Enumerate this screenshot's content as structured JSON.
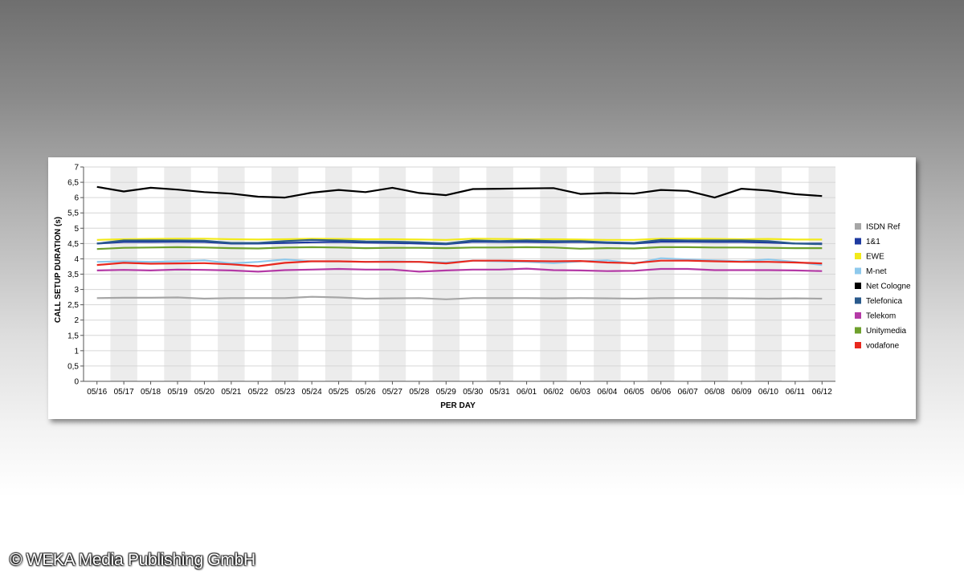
{
  "chart_data": {
    "type": "line",
    "xlabel": "PER DAY",
    "ylabel": "CALL SETUP DURATION (s)",
    "ylim": [
      0,
      7
    ],
    "yticks": [
      "0",
      "0,5",
      "1",
      "1,5",
      "2",
      "2,5",
      "3",
      "3,5",
      "4",
      "4,5",
      "5",
      "5,5",
      "6",
      "6,5",
      "7"
    ],
    "categories": [
      "05/16",
      "05/17",
      "05/18",
      "05/19",
      "05/20",
      "05/21",
      "05/22",
      "05/23",
      "05/24",
      "05/25",
      "05/26",
      "05/27",
      "05/28",
      "05/29",
      "05/30",
      "05/31",
      "06/01",
      "06/02",
      "06/03",
      "06/04",
      "06/05",
      "06/06",
      "06/07",
      "06/08",
      "06/09",
      "06/10",
      "06/11",
      "06/12"
    ],
    "grid": "alternating vertical bands with horizontal gridlines",
    "legend_position": "right",
    "series": [
      {
        "name": "ISDN Ref",
        "color": "#a6a6a6",
        "values": [
          2.72,
          2.73,
          2.73,
          2.74,
          2.7,
          2.72,
          2.72,
          2.72,
          2.76,
          2.74,
          2.7,
          2.71,
          2.72,
          2.68,
          2.72,
          2.72,
          2.72,
          2.71,
          2.72,
          2.71,
          2.7,
          2.72,
          2.72,
          2.72,
          2.71,
          2.7,
          2.71,
          2.7
        ]
      },
      {
        "name": "1&1",
        "color": "#1e3aa0",
        "values": [
          4.5,
          4.55,
          4.55,
          4.56,
          4.55,
          4.5,
          4.5,
          4.52,
          4.54,
          4.55,
          4.53,
          4.52,
          4.5,
          4.48,
          4.56,
          4.55,
          4.55,
          4.54,
          4.55,
          4.52,
          4.5,
          4.56,
          4.56,
          4.55,
          4.55,
          4.53,
          4.5,
          4.5
        ]
      },
      {
        "name": "EWE",
        "color": "#f2ea1b",
        "values": [
          4.62,
          4.64,
          4.65,
          4.66,
          4.66,
          4.64,
          4.63,
          4.64,
          4.66,
          4.65,
          4.64,
          4.64,
          4.63,
          4.62,
          4.66,
          4.65,
          4.64,
          4.64,
          4.63,
          4.62,
          4.62,
          4.66,
          4.66,
          4.65,
          4.64,
          4.65,
          4.63,
          4.63
        ]
      },
      {
        "name": "M-net",
        "color": "#8ec9ec",
        "values": [
          3.9,
          3.92,
          3.9,
          3.92,
          3.95,
          3.85,
          3.9,
          3.98,
          3.92,
          3.92,
          3.9,
          3.92,
          3.9,
          3.88,
          3.94,
          3.92,
          3.9,
          3.86,
          3.92,
          3.95,
          3.84,
          4.02,
          3.98,
          3.95,
          3.92,
          3.98,
          3.9,
          3.8
        ]
      },
      {
        "name": "Net Cologne",
        "color": "#000000",
        "values": [
          6.35,
          6.2,
          6.32,
          6.26,
          6.18,
          6.13,
          6.03,
          6.0,
          6.16,
          6.25,
          6.18,
          6.32,
          6.15,
          6.08,
          6.28,
          6.29,
          6.3,
          6.31,
          6.12,
          6.15,
          6.13,
          6.25,
          6.22,
          6.0,
          6.29,
          6.23,
          6.11,
          6.05
        ]
      },
      {
        "name": "Telefonica",
        "color": "#2a5a8c",
        "values": [
          4.5,
          4.6,
          4.6,
          4.6,
          4.59,
          4.52,
          4.52,
          4.58,
          4.62,
          4.6,
          4.57,
          4.56,
          4.54,
          4.5,
          4.6,
          4.58,
          4.6,
          4.58,
          4.58,
          4.54,
          4.52,
          4.62,
          4.6,
          4.6,
          4.6,
          4.58,
          4.5,
          4.48
        ]
      },
      {
        "name": "Telekom",
        "color": "#b43aa6",
        "values": [
          3.62,
          3.64,
          3.62,
          3.65,
          3.64,
          3.62,
          3.58,
          3.63,
          3.65,
          3.67,
          3.65,
          3.65,
          3.58,
          3.62,
          3.65,
          3.65,
          3.68,
          3.63,
          3.62,
          3.6,
          3.61,
          3.67,
          3.67,
          3.63,
          3.63,
          3.63,
          3.62,
          3.6
        ]
      },
      {
        "name": "Unitymedia",
        "color": "#6ea02c",
        "values": [
          4.32,
          4.36,
          4.37,
          4.38,
          4.37,
          4.35,
          4.34,
          4.37,
          4.38,
          4.37,
          4.35,
          4.36,
          4.36,
          4.35,
          4.37,
          4.37,
          4.38,
          4.37,
          4.33,
          4.35,
          4.34,
          4.38,
          4.38,
          4.37,
          4.37,
          4.36,
          4.35,
          4.35
        ]
      },
      {
        "name": "vodafone",
        "color": "#e8281e",
        "values": [
          3.8,
          3.87,
          3.84,
          3.85,
          3.86,
          3.82,
          3.76,
          3.87,
          3.92,
          3.92,
          3.9,
          3.9,
          3.9,
          3.85,
          3.94,
          3.94,
          3.93,
          3.92,
          3.93,
          3.88,
          3.86,
          3.94,
          3.94,
          3.92,
          3.9,
          3.9,
          3.88,
          3.85
        ]
      }
    ]
  },
  "footer": {
    "copyright": "© WEKA Media Publishing GmbH"
  }
}
